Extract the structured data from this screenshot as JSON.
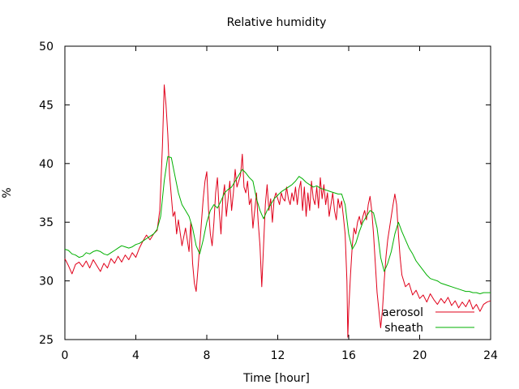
{
  "chart_data": {
    "type": "line",
    "title": "Relative humidity",
    "xlabel": "Time [hour]",
    "ylabel": "%",
    "xlim": [
      0,
      24
    ],
    "ylim": [
      25,
      50
    ],
    "xticks": [
      0,
      4,
      8,
      12,
      16,
      20,
      24
    ],
    "yticks": [
      25,
      30,
      35,
      40,
      45,
      50
    ],
    "legend_position": "bottom-right",
    "grid": false,
    "series": [
      {
        "name": "aerosol",
        "color": "#e0001a",
        "points": [
          [
            0.0,
            31.9
          ],
          [
            0.2,
            31.3
          ],
          [
            0.4,
            30.6
          ],
          [
            0.6,
            31.4
          ],
          [
            0.8,
            31.6
          ],
          [
            1.0,
            31.2
          ],
          [
            1.2,
            31.7
          ],
          [
            1.4,
            31.1
          ],
          [
            1.6,
            31.8
          ],
          [
            1.8,
            31.3
          ],
          [
            2.0,
            30.8
          ],
          [
            2.2,
            31.5
          ],
          [
            2.4,
            31.1
          ],
          [
            2.6,
            31.9
          ],
          [
            2.8,
            31.5
          ],
          [
            3.0,
            32.1
          ],
          [
            3.2,
            31.6
          ],
          [
            3.4,
            32.2
          ],
          [
            3.6,
            31.8
          ],
          [
            3.8,
            32.4
          ],
          [
            4.0,
            32.0
          ],
          [
            4.2,
            32.8
          ],
          [
            4.4,
            33.4
          ],
          [
            4.6,
            33.9
          ],
          [
            4.8,
            33.5
          ],
          [
            5.0,
            34.0
          ],
          [
            5.2,
            34.3
          ],
          [
            5.35,
            36.0
          ],
          [
            5.5,
            41.5
          ],
          [
            5.6,
            46.7
          ],
          [
            5.7,
            45.0
          ],
          [
            5.8,
            42.5
          ],
          [
            5.9,
            39.0
          ],
          [
            6.0,
            37.2
          ],
          [
            6.1,
            35.5
          ],
          [
            6.2,
            35.9
          ],
          [
            6.3,
            34.0
          ],
          [
            6.4,
            35.2
          ],
          [
            6.6,
            33.0
          ],
          [
            6.8,
            34.5
          ],
          [
            7.0,
            32.5
          ],
          [
            7.1,
            35.0
          ],
          [
            7.2,
            31.5
          ],
          [
            7.3,
            29.8
          ],
          [
            7.4,
            29.1
          ],
          [
            7.5,
            31.0
          ],
          [
            7.6,
            33.0
          ],
          [
            7.7,
            35.0
          ],
          [
            7.8,
            37.0
          ],
          [
            7.9,
            38.5
          ],
          [
            8.0,
            39.3
          ],
          [
            8.1,
            36.0
          ],
          [
            8.2,
            34.0
          ],
          [
            8.3,
            33.0
          ],
          [
            8.4,
            35.0
          ],
          [
            8.5,
            37.5
          ],
          [
            8.6,
            38.8
          ],
          [
            8.7,
            36.0
          ],
          [
            8.8,
            34.0
          ],
          [
            8.9,
            37.0
          ],
          [
            9.0,
            38.2
          ],
          [
            9.1,
            35.5
          ],
          [
            9.2,
            37.0
          ],
          [
            9.3,
            38.5
          ],
          [
            9.4,
            36.0
          ],
          [
            9.5,
            37.5
          ],
          [
            9.6,
            39.5
          ],
          [
            9.7,
            38.0
          ],
          [
            9.8,
            38.5
          ],
          [
            9.9,
            39.0
          ],
          [
            10.0,
            40.8
          ],
          [
            10.1,
            38.0
          ],
          [
            10.2,
            37.5
          ],
          [
            10.3,
            38.5
          ],
          [
            10.4,
            36.5
          ],
          [
            10.5,
            37.0
          ],
          [
            10.6,
            34.5
          ],
          [
            10.7,
            36.0
          ],
          [
            10.8,
            37.5
          ],
          [
            10.9,
            35.0
          ],
          [
            11.0,
            33.0
          ],
          [
            11.1,
            29.5
          ],
          [
            11.2,
            33.0
          ],
          [
            11.3,
            36.5
          ],
          [
            11.4,
            38.2
          ],
          [
            11.5,
            36.0
          ],
          [
            11.6,
            37.0
          ],
          [
            11.7,
            35.0
          ],
          [
            11.8,
            37.0
          ],
          [
            11.9,
            37.5
          ],
          [
            12.0,
            37.0
          ],
          [
            12.1,
            36.5
          ],
          [
            12.2,
            37.5
          ],
          [
            12.3,
            37.0
          ],
          [
            12.4,
            36.8
          ],
          [
            12.5,
            38.0
          ],
          [
            12.6,
            37.0
          ],
          [
            12.7,
            36.5
          ],
          [
            12.8,
            37.5
          ],
          [
            12.9,
            36.8
          ],
          [
            13.0,
            38.0
          ],
          [
            13.1,
            36.5
          ],
          [
            13.2,
            37.8
          ],
          [
            13.3,
            38.5
          ],
          [
            13.4,
            36.0
          ],
          [
            13.5,
            38.0
          ],
          [
            13.6,
            35.5
          ],
          [
            13.7,
            37.5
          ],
          [
            13.8,
            36.0
          ],
          [
            13.9,
            38.5
          ],
          [
            14.0,
            37.0
          ],
          [
            14.1,
            36.5
          ],
          [
            14.2,
            38.0
          ],
          [
            14.3,
            36.2
          ],
          [
            14.4,
            38.8
          ],
          [
            14.5,
            37.0
          ],
          [
            14.6,
            38.2
          ],
          [
            14.7,
            36.5
          ],
          [
            14.8,
            37.5
          ],
          [
            14.9,
            35.5
          ],
          [
            15.0,
            36.5
          ],
          [
            15.1,
            37.5
          ],
          [
            15.2,
            36.0
          ],
          [
            15.3,
            35.2
          ],
          [
            15.4,
            37.0
          ],
          [
            15.5,
            36.2
          ],
          [
            15.6,
            36.8
          ],
          [
            15.7,
            35.5
          ],
          [
            15.8,
            34.0
          ],
          [
            15.9,
            30.0
          ],
          [
            15.95,
            25.2
          ],
          [
            16.0,
            27.5
          ],
          [
            16.1,
            30.5
          ],
          [
            16.2,
            33.0
          ],
          [
            16.3,
            34.5
          ],
          [
            16.4,
            34.0
          ],
          [
            16.5,
            35.0
          ],
          [
            16.6,
            35.5
          ],
          [
            16.7,
            34.8
          ],
          [
            16.8,
            35.5
          ],
          [
            16.9,
            36.0
          ],
          [
            17.0,
            35.2
          ],
          [
            17.1,
            36.5
          ],
          [
            17.2,
            37.2
          ],
          [
            17.3,
            36.0
          ],
          [
            17.4,
            34.0
          ],
          [
            17.5,
            31.5
          ],
          [
            17.6,
            29.0
          ],
          [
            17.7,
            27.5
          ],
          [
            17.8,
            26.0
          ],
          [
            17.9,
            27.5
          ],
          [
            18.0,
            30.0
          ],
          [
            18.1,
            32.0
          ],
          [
            18.2,
            33.5
          ],
          [
            18.3,
            34.5
          ],
          [
            18.4,
            35.5
          ],
          [
            18.5,
            36.5
          ],
          [
            18.6,
            37.4
          ],
          [
            18.7,
            36.5
          ],
          [
            18.8,
            34.0
          ],
          [
            18.9,
            32.0
          ],
          [
            19.0,
            30.5
          ],
          [
            19.2,
            29.5
          ],
          [
            19.4,
            29.8
          ],
          [
            19.6,
            28.8
          ],
          [
            19.8,
            29.2
          ],
          [
            20.0,
            28.5
          ],
          [
            20.2,
            28.8
          ],
          [
            20.4,
            28.2
          ],
          [
            20.6,
            28.9
          ],
          [
            20.8,
            28.4
          ],
          [
            21.0,
            28.0
          ],
          [
            21.2,
            28.5
          ],
          [
            21.4,
            28.1
          ],
          [
            21.6,
            28.6
          ],
          [
            21.8,
            27.9
          ],
          [
            22.0,
            28.3
          ],
          [
            22.2,
            27.7
          ],
          [
            22.4,
            28.2
          ],
          [
            22.6,
            27.8
          ],
          [
            22.8,
            28.4
          ],
          [
            23.0,
            27.6
          ],
          [
            23.2,
            28.0
          ],
          [
            23.4,
            27.4
          ],
          [
            23.6,
            28.0
          ],
          [
            23.8,
            28.2
          ],
          [
            24.0,
            28.3
          ]
        ]
      },
      {
        "name": "sheath",
        "color": "#00b000",
        "points": [
          [
            0.0,
            32.7
          ],
          [
            0.2,
            32.6
          ],
          [
            0.4,
            32.3
          ],
          [
            0.6,
            32.2
          ],
          [
            0.8,
            32.0
          ],
          [
            1.0,
            32.1
          ],
          [
            1.2,
            32.4
          ],
          [
            1.4,
            32.3
          ],
          [
            1.6,
            32.5
          ],
          [
            1.8,
            32.6
          ],
          [
            2.0,
            32.5
          ],
          [
            2.2,
            32.3
          ],
          [
            2.4,
            32.2
          ],
          [
            2.6,
            32.4
          ],
          [
            2.8,
            32.6
          ],
          [
            3.0,
            32.8
          ],
          [
            3.2,
            33.0
          ],
          [
            3.4,
            32.9
          ],
          [
            3.6,
            32.8
          ],
          [
            3.8,
            32.9
          ],
          [
            4.0,
            33.1
          ],
          [
            4.2,
            33.2
          ],
          [
            4.4,
            33.4
          ],
          [
            4.6,
            33.6
          ],
          [
            4.8,
            33.8
          ],
          [
            5.0,
            34.0
          ],
          [
            5.2,
            34.4
          ],
          [
            5.4,
            35.5
          ],
          [
            5.6,
            38.5
          ],
          [
            5.8,
            40.6
          ],
          [
            6.0,
            40.5
          ],
          [
            6.2,
            39.0
          ],
          [
            6.4,
            37.5
          ],
          [
            6.6,
            36.5
          ],
          [
            6.8,
            36.0
          ],
          [
            7.0,
            35.5
          ],
          [
            7.2,
            34.5
          ],
          [
            7.4,
            33.0
          ],
          [
            7.6,
            32.3
          ],
          [
            7.8,
            33.5
          ],
          [
            8.0,
            35.0
          ],
          [
            8.2,
            36.0
          ],
          [
            8.4,
            36.5
          ],
          [
            8.6,
            36.2
          ],
          [
            8.8,
            36.8
          ],
          [
            9.0,
            37.5
          ],
          [
            9.2,
            37.8
          ],
          [
            9.4,
            38.0
          ],
          [
            9.6,
            38.5
          ],
          [
            9.8,
            39.0
          ],
          [
            10.0,
            39.5
          ],
          [
            10.2,
            39.2
          ],
          [
            10.4,
            38.8
          ],
          [
            10.6,
            38.5
          ],
          [
            10.8,
            37.0
          ],
          [
            11.0,
            36.0
          ],
          [
            11.2,
            35.3
          ],
          [
            11.4,
            36.0
          ],
          [
            11.6,
            36.5
          ],
          [
            11.8,
            37.0
          ],
          [
            12.0,
            37.3
          ],
          [
            12.2,
            37.6
          ],
          [
            12.4,
            37.8
          ],
          [
            12.6,
            38.0
          ],
          [
            12.8,
            38.2
          ],
          [
            13.0,
            38.5
          ],
          [
            13.2,
            38.9
          ],
          [
            13.4,
            38.7
          ],
          [
            13.6,
            38.4
          ],
          [
            13.8,
            38.2
          ],
          [
            14.0,
            38.0
          ],
          [
            14.2,
            38.1
          ],
          [
            14.4,
            37.9
          ],
          [
            14.6,
            37.8
          ],
          [
            14.8,
            37.7
          ],
          [
            15.0,
            37.6
          ],
          [
            15.2,
            37.5
          ],
          [
            15.4,
            37.4
          ],
          [
            15.6,
            37.4
          ],
          [
            15.8,
            36.5
          ],
          [
            16.0,
            34.0
          ],
          [
            16.2,
            32.7
          ],
          [
            16.4,
            33.2
          ],
          [
            16.6,
            34.2
          ],
          [
            16.8,
            35.0
          ],
          [
            17.0,
            35.5
          ],
          [
            17.2,
            36.0
          ],
          [
            17.4,
            35.8
          ],
          [
            17.6,
            34.5
          ],
          [
            17.8,
            32.0
          ],
          [
            18.0,
            30.8
          ],
          [
            18.2,
            31.5
          ],
          [
            18.4,
            32.5
          ],
          [
            18.6,
            34.0
          ],
          [
            18.8,
            35.0
          ],
          [
            19.0,
            34.2
          ],
          [
            19.2,
            33.5
          ],
          [
            19.4,
            32.8
          ],
          [
            19.6,
            32.3
          ],
          [
            19.8,
            31.7
          ],
          [
            20.0,
            31.3
          ],
          [
            20.2,
            30.9
          ],
          [
            20.4,
            30.5
          ],
          [
            20.6,
            30.2
          ],
          [
            20.8,
            30.1
          ],
          [
            21.0,
            30.0
          ],
          [
            21.2,
            29.8
          ],
          [
            21.4,
            29.7
          ],
          [
            21.6,
            29.6
          ],
          [
            21.8,
            29.5
          ],
          [
            22.0,
            29.4
          ],
          [
            22.2,
            29.3
          ],
          [
            22.4,
            29.2
          ],
          [
            22.6,
            29.1
          ],
          [
            22.8,
            29.1
          ],
          [
            23.0,
            29.0
          ],
          [
            23.2,
            29.0
          ],
          [
            23.4,
            28.9
          ],
          [
            23.6,
            29.0
          ],
          [
            23.8,
            29.0
          ],
          [
            24.0,
            29.0
          ]
        ]
      }
    ]
  }
}
